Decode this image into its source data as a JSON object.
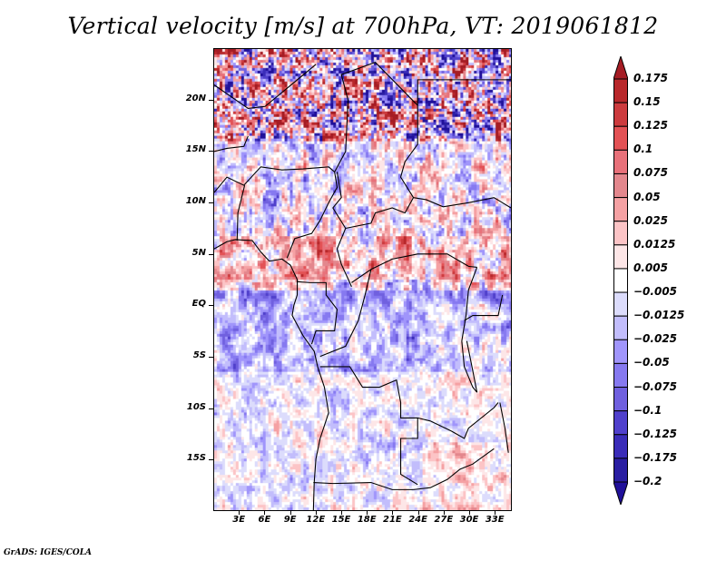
{
  "title": "Vertical velocity [m/s] at 700hPa, VT: 2019061812",
  "footer": "GrADS: IGES/COLA",
  "map": {
    "variable": "Vertical velocity",
    "units": "m/s",
    "level": "700hPa",
    "valid_time": "2019061812",
    "lon_range": [
      0,
      35
    ],
    "lat_range": [
      -20,
      25
    ],
    "lat_labels": [
      {
        "label": "20N",
        "lat": 20
      },
      {
        "label": "15N",
        "lat": 15
      },
      {
        "label": "10N",
        "lat": 10
      },
      {
        "label": "5N",
        "lat": 5
      },
      {
        "label": "EQ",
        "lat": 0
      },
      {
        "label": "5S",
        "lat": -5
      },
      {
        "label": "10S",
        "lat": -10
      },
      {
        "label": "15S",
        "lat": -15
      }
    ],
    "lon_labels": [
      {
        "label": "3E",
        "lon": 3
      },
      {
        "label": "6E",
        "lon": 6
      },
      {
        "label": "9E",
        "lon": 9
      },
      {
        "label": "12E",
        "lon": 12
      },
      {
        "label": "15E",
        "lon": 15
      },
      {
        "label": "18E",
        "lon": 18
      },
      {
        "label": "21E",
        "lon": 21
      },
      {
        "label": "24E",
        "lon": 24
      },
      {
        "label": "27E",
        "lon": 27
      },
      {
        "label": "30E",
        "lon": 30
      },
      {
        "label": "33E",
        "lon": 33
      }
    ]
  },
  "colorbar": {
    "labels": [
      "0.175",
      "0.15",
      "0.125",
      "0.1",
      "0.075",
      "0.05",
      "0.025",
      "0.0125",
      "0.005",
      "−0.005",
      "−0.0125",
      "−0.025",
      "−0.05",
      "−0.075",
      "−0.1",
      "−0.125",
      "−0.175",
      "−0.2"
    ],
    "colors_top_to_bottom": [
      "#a51c24",
      "#b8282b",
      "#cc3b3e",
      "#e35255",
      "#e8717a",
      "#e3878d",
      "#f5a1a3",
      "#fcc4c6",
      "#fde6e7",
      "#ffffff",
      "#dcdcfc",
      "#c2bdfc",
      "#a095fb",
      "#8679f0",
      "#7060df",
      "#5040cc",
      "#3a2cb8",
      "#2a1ea2",
      "#20109a"
    ]
  }
}
